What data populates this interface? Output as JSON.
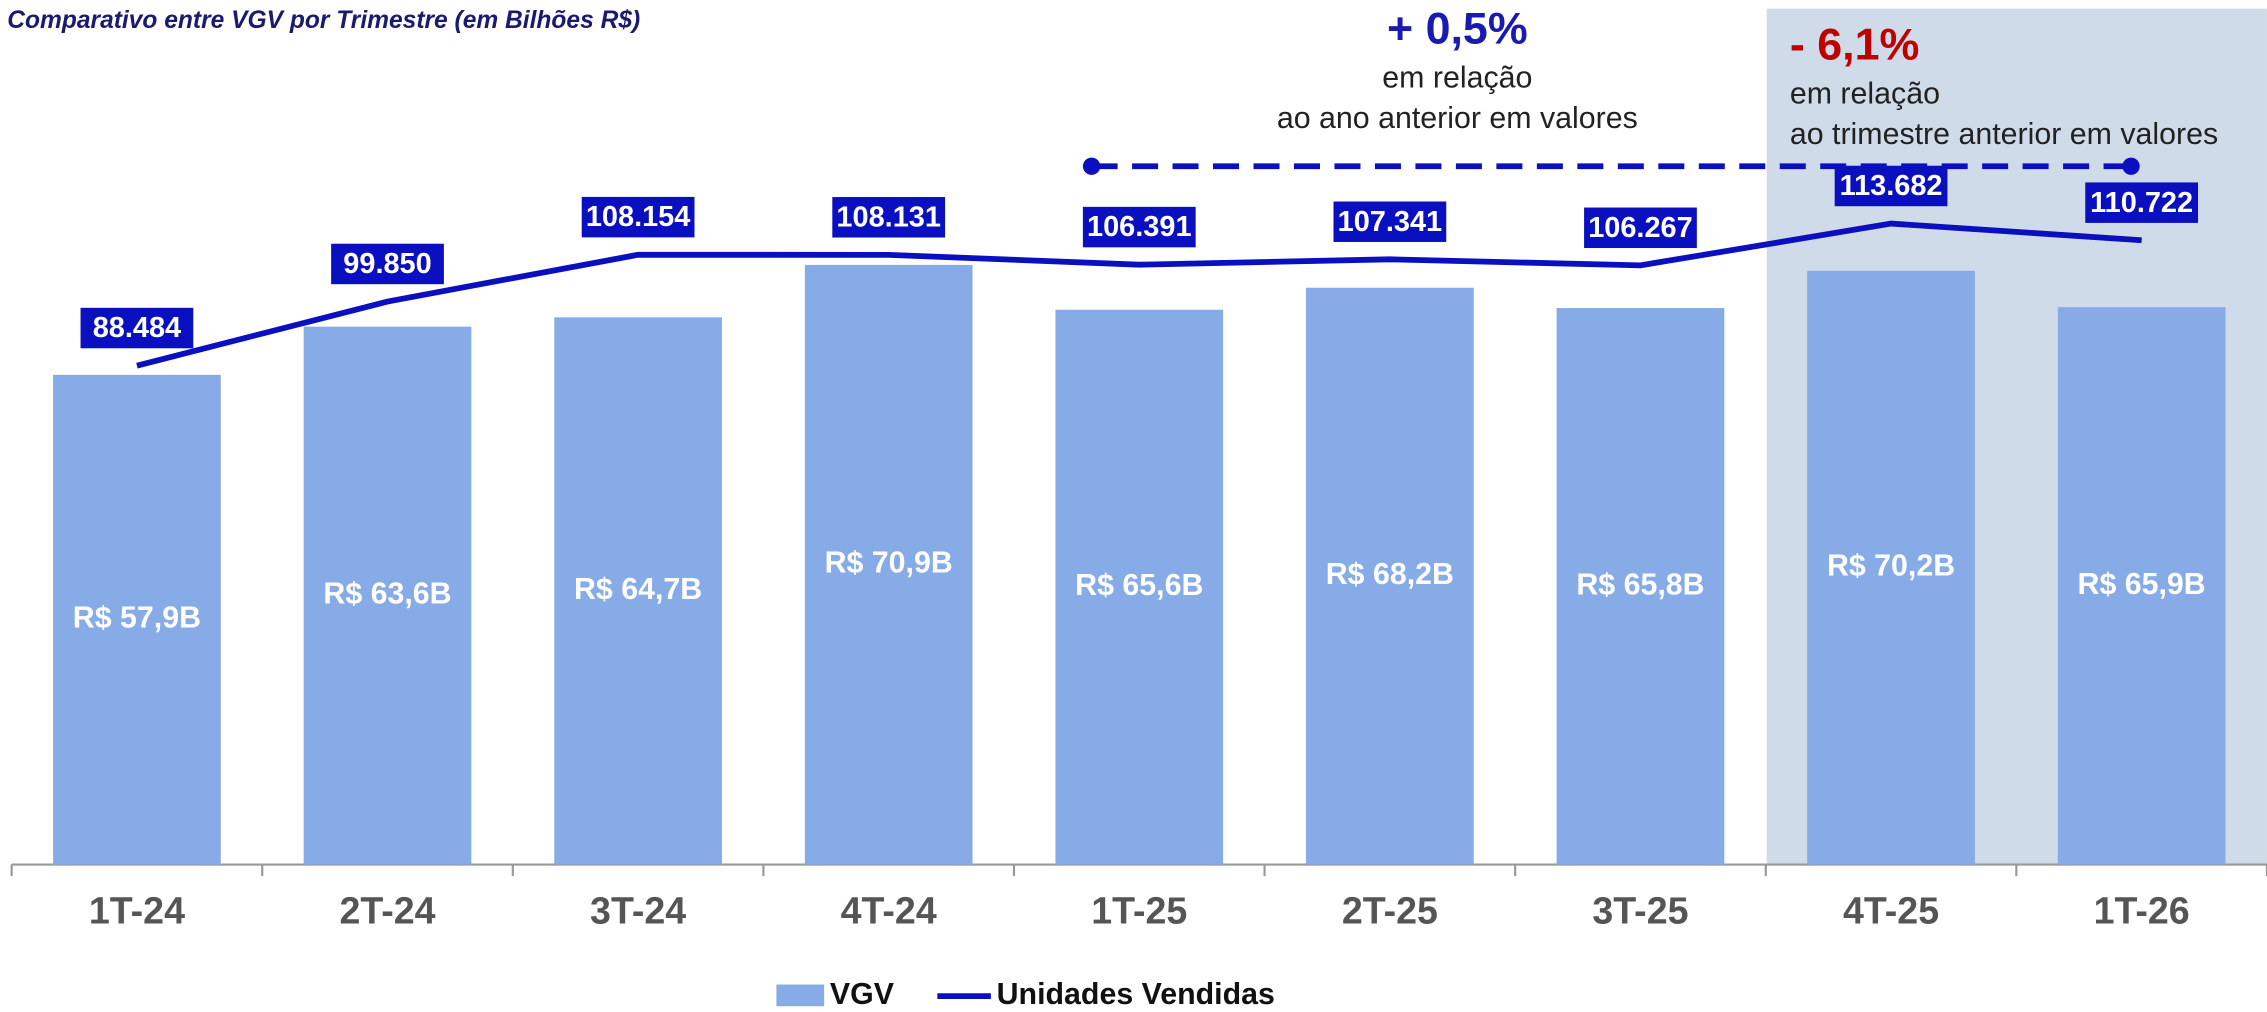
{
  "chart_data": {
    "type": "bar",
    "title": "Comparativo entre VGV por Trimestre (em Bilhões R$)",
    "categories": [
      "1T-24",
      "2T-24",
      "3T-24",
      "4T-24",
      "1T-25",
      "2T-25",
      "3T-25",
      "4T-25",
      "1T-26"
    ],
    "series": [
      {
        "name": "VGV",
        "type": "bar",
        "color": "#86abe6",
        "values": [
          57.9,
          63.6,
          64.7,
          70.9,
          65.6,
          68.2,
          65.8,
          70.2,
          65.9
        ],
        "value_labels": [
          "R$ 57,9B",
          "R$ 63,6B",
          "R$ 64,7B",
          "R$ 70,9B",
          "R$ 65,6B",
          "R$ 68,2B",
          "R$ 65,8B",
          "R$ 70,2B",
          "R$ 65,9B"
        ]
      },
      {
        "name": "Unidades Vendidas",
        "type": "line",
        "axis": "y2",
        "color": "#0a10c0",
        "values": [
          88484,
          99850,
          108154,
          108131,
          106391,
          107341,
          106267,
          113682,
          110722
        ],
        "value_labels": [
          "88.484",
          "99.850",
          "108.154",
          "108.131",
          "106.391",
          "107.341",
          "106.267",
          "113.682",
          "110.722"
        ]
      }
    ],
    "ylim": [
      0,
      80
    ],
    "y2lim": [
      0,
      120000
    ],
    "annotations": [
      {
        "headline": "+ 0,5%",
        "color": "#1a1ab0",
        "text": [
          "em relação",
          "ao ano anterior em valores"
        ]
      },
      {
        "headline": "- 6,1%",
        "color": "#c00000",
        "text": [
          "em relação",
          "ao trimestre anterior em valores"
        ]
      }
    ],
    "legend": "bottom"
  }
}
